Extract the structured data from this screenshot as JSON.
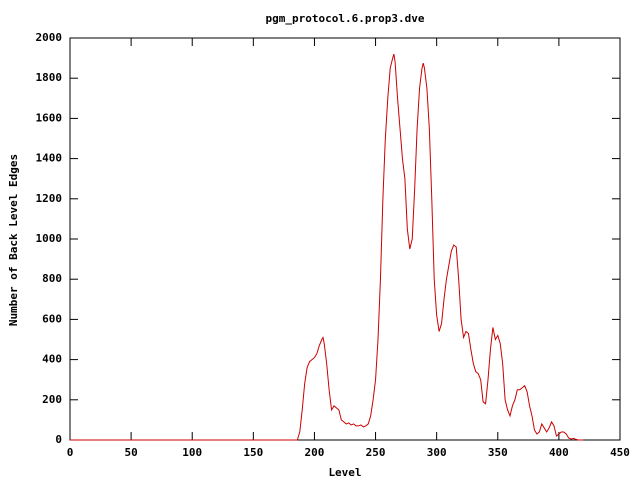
{
  "chart_data": {
    "type": "line",
    "title": "pgm_protocol.6.prop3.dve",
    "x_label": "Level",
    "y_label": "Number of Back Level Edges",
    "xlim": [
      0,
      450
    ],
    "ylim": [
      0,
      2000
    ],
    "xticks": [
      0,
      50,
      100,
      150,
      200,
      250,
      300,
      350,
      400,
      450
    ],
    "yticks": [
      0,
      200,
      400,
      600,
      800,
      1000,
      1200,
      1400,
      1600,
      1800,
      2000
    ],
    "series": [
      {
        "color": "#cc0000",
        "x": [
          0,
          186,
          188,
          190,
          192,
          194,
          196,
          198,
          200,
          202,
          204,
          206,
          207,
          208,
          210,
          212,
          214,
          216,
          218,
          220,
          222,
          224,
          226,
          228,
          230,
          232,
          234,
          236,
          238,
          240,
          242,
          244,
          246,
          248,
          250,
          252,
          254,
          256,
          258,
          260,
          262,
          264,
          265,
          266,
          268,
          270,
          272,
          274,
          276,
          278,
          280,
          282,
          284,
          286,
          288,
          289,
          290,
          292,
          294,
          296,
          298,
          300,
          302,
          304,
          306,
          308,
          310,
          312,
          314,
          316,
          318,
          320,
          322,
          324,
          326,
          328,
          330,
          332,
          334,
          336,
          338,
          340,
          342,
          344,
          346,
          348,
          350,
          352,
          354,
          356,
          358,
          360,
          362,
          364,
          366,
          368,
          370,
          372,
          374,
          376,
          378,
          380,
          382,
          384,
          386,
          388,
          390,
          392,
          394,
          396,
          398,
          400,
          402,
          404,
          406,
          408,
          410,
          412,
          414,
          416,
          420
        ],
        "values": [
          0,
          0,
          40,
          150,
          280,
          360,
          390,
          400,
          410,
          430,
          470,
          500,
          510,
          480,
          380,
          250,
          150,
          170,
          160,
          150,
          100,
          90,
          80,
          85,
          75,
          80,
          70,
          70,
          75,
          65,
          70,
          80,
          120,
          200,
          300,
          500,
          800,
          1200,
          1500,
          1700,
          1850,
          1900,
          1920,
          1880,
          1700,
          1550,
          1400,
          1300,
          1050,
          950,
          1000,
          1250,
          1550,
          1750,
          1850,
          1875,
          1850,
          1750,
          1550,
          1200,
          800,
          620,
          540,
          580,
          700,
          800,
          870,
          940,
          970,
          960,
          800,
          600,
          510,
          540,
          530,
          450,
          380,
          340,
          330,
          300,
          190,
          180,
          300,
          450,
          560,
          500,
          520,
          480,
          380,
          200,
          150,
          120,
          170,
          200,
          250,
          250,
          260,
          270,
          240,
          170,
          120,
          50,
          30,
          40,
          80,
          60,
          40,
          60,
          90,
          70,
          20,
          30,
          40,
          40,
          30,
          10,
          5,
          8,
          3,
          0,
          0
        ]
      }
    ]
  }
}
